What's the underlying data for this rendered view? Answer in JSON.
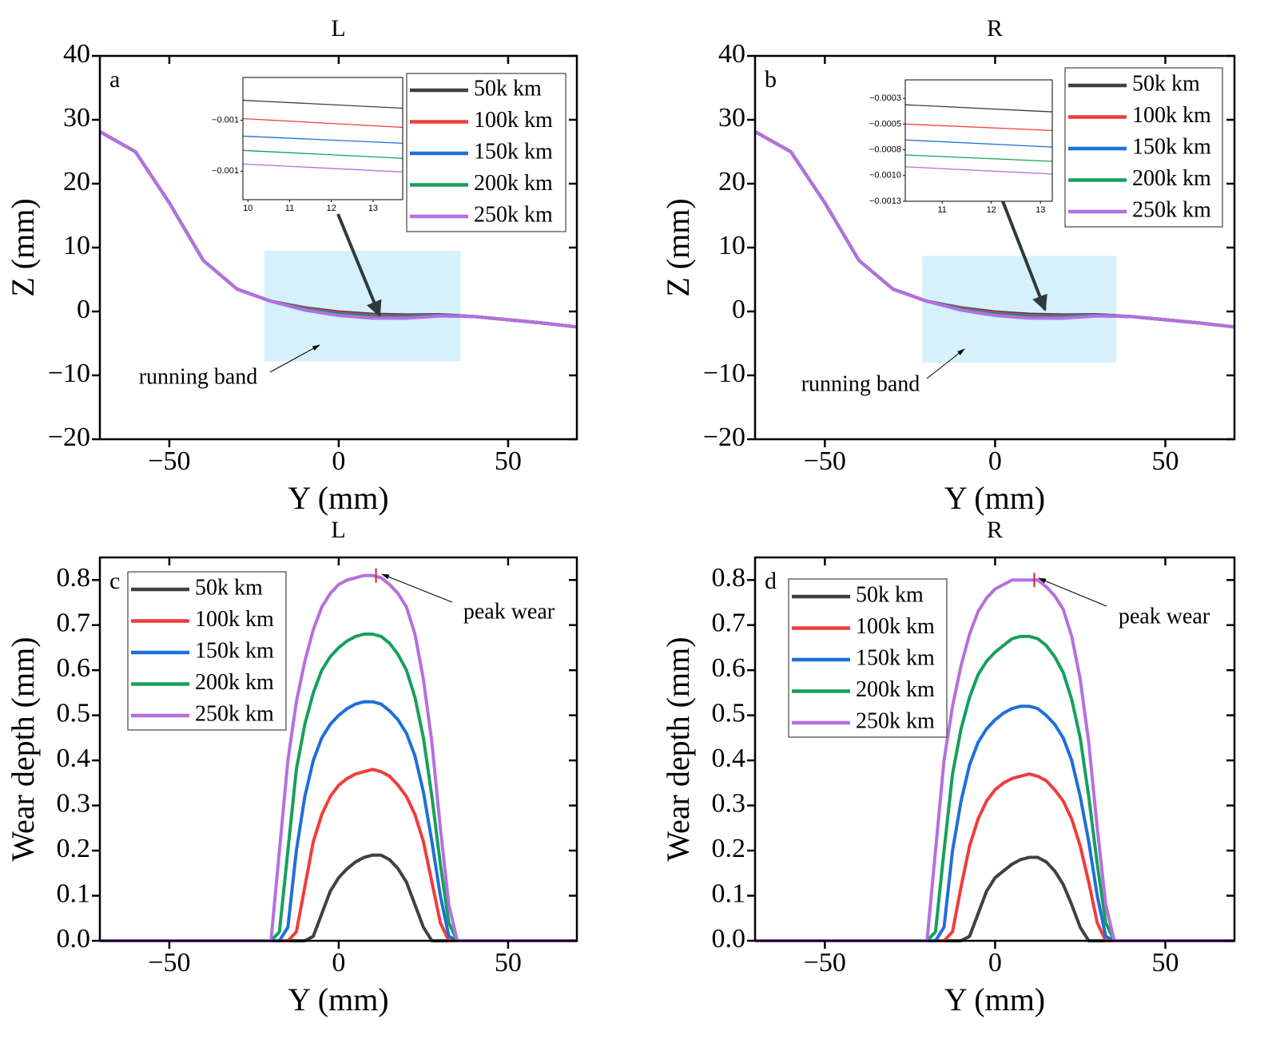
{
  "chart_data": [
    {
      "type": "line",
      "title": "L",
      "panel_label": "a",
      "xlabel": "Y (mm)",
      "ylabel": "Z (mm)",
      "x": [
        -70,
        -60,
        -50,
        -40,
        -30,
        -20,
        -10,
        0,
        10,
        20,
        30,
        40,
        50,
        60,
        70
      ],
      "series": [
        {
          "name": "50k km",
          "color": "#404040",
          "values": [
            28,
            25,
            17,
            8,
            3.5,
            1.6,
            0.58,
            -0.08,
            -0.44,
            -0.54,
            -0.5,
            -0.8,
            -1.3,
            -1.8,
            -2.4
          ]
        },
        {
          "name": "100k km",
          "color": "#f03c3c",
          "values": [
            28,
            25,
            17,
            8,
            3.5,
            1.6,
            0.5,
            -0.22,
            -0.63,
            -0.7,
            -0.55,
            -0.8,
            -1.3,
            -1.8,
            -2.4
          ]
        },
        {
          "name": "150k km",
          "color": "#1f6fd8",
          "values": [
            28,
            25,
            17,
            8,
            3.5,
            1.6,
            0.4,
            -0.37,
            -0.78,
            -0.83,
            -0.6,
            -0.8,
            -1.3,
            -1.8,
            -2.4
          ]
        },
        {
          "name": "200k km",
          "color": "#16a05a",
          "values": [
            28,
            25,
            17,
            8,
            3.5,
            1.6,
            0.3,
            -0.5,
            -0.93,
            -0.95,
            -0.65,
            -0.8,
            -1.3,
            -1.8,
            -2.4
          ]
        },
        {
          "name": "250k km",
          "color": "#b56fe0",
          "values": [
            28,
            25,
            17,
            8,
            3.5,
            1.6,
            0.2,
            -0.63,
            -1.05,
            -1.07,
            -0.7,
            -0.8,
            -1.3,
            -1.8,
            -2.4
          ]
        }
      ],
      "xlim": [
        -70.5,
        70.3
      ],
      "ylim": [
        -20,
        40
      ],
      "xticks": [
        {
          "value": -50,
          "label": "−50"
        },
        0,
        50
      ],
      "yticks": [
        {
          "value": -20,
          "label": "−20"
        },
        {
          "value": -10,
          "label": "−10"
        },
        0,
        10,
        20,
        30,
        40
      ],
      "band": {
        "label": "running band",
        "x": [
          -22,
          36
        ],
        "y": [
          -7.8,
          9.5
        ]
      },
      "inset": {
        "xlim": [
          9.88,
          13.71
        ],
        "ylim": [
          -0.00124,
          -0.00064
        ],
        "xticks": [
          10,
          11,
          12,
          13
        ],
        "yticks": [
          {
            "value": -0.00085,
            "label": "−0.001"
          },
          {
            "value": -0.0011,
            "label": "−0.001"
          }
        ],
        "x": [
          9.88,
          13.71
        ],
        "series": [
          {
            "values": [
              -0.000752,
              -0.000791
            ]
          },
          {
            "values": [
              -0.000842,
              -0.000885
            ]
          },
          {
            "values": [
              -0.000928,
              -0.000963
            ]
          },
          {
            "values": [
              -0.000998,
              -0.001037
            ]
          },
          {
            "values": [
              -0.001065,
              -0.001104
            ]
          }
        ]
      }
    },
    {
      "type": "line",
      "title": "R",
      "panel_label": "b",
      "xlabel": "Y (mm)",
      "ylabel": "Z (mm)",
      "x": [
        -70,
        -60,
        -50,
        -40,
        -30,
        -20,
        -10,
        0,
        10,
        20,
        30,
        40,
        50,
        60,
        70
      ],
      "series": [
        {
          "name": "50k km",
          "color": "#404040",
          "values": [
            28,
            25,
            17,
            8,
            3.5,
            1.6,
            0.58,
            -0.08,
            -0.44,
            -0.54,
            -0.5,
            -0.8,
            -1.3,
            -1.8,
            -2.4
          ]
        },
        {
          "name": "100k km",
          "color": "#f03c3c",
          "values": [
            28,
            25,
            17,
            8,
            3.5,
            1.6,
            0.5,
            -0.22,
            -0.63,
            -0.7,
            -0.55,
            -0.8,
            -1.3,
            -1.8,
            -2.4
          ]
        },
        {
          "name": "150k km",
          "color": "#1f6fd8",
          "values": [
            28,
            25,
            17,
            8,
            3.5,
            1.6,
            0.4,
            -0.37,
            -0.78,
            -0.83,
            -0.6,
            -0.8,
            -1.3,
            -1.8,
            -2.4
          ]
        },
        {
          "name": "200k km",
          "color": "#16a05a",
          "values": [
            28,
            25,
            17,
            8,
            3.5,
            1.6,
            0.3,
            -0.5,
            -0.93,
            -0.95,
            -0.65,
            -0.8,
            -1.3,
            -1.8,
            -2.4
          ]
        },
        {
          "name": "250k km",
          "color": "#b56fe0",
          "values": [
            28,
            25,
            17,
            8,
            3.5,
            1.6,
            0.2,
            -0.63,
            -1.05,
            -1.07,
            -0.7,
            -0.8,
            -1.3,
            -1.8,
            -2.4
          ]
        }
      ],
      "xlim": [
        -70.5,
        70.3
      ],
      "ylim": [
        -20,
        40
      ],
      "xticks": [
        {
          "value": -50,
          "label": "−50"
        },
        0,
        50
      ],
      "yticks": [
        {
          "value": -20,
          "label": "−20"
        },
        {
          "value": -10,
          "label": "−10"
        },
        0,
        10,
        20,
        30,
        40
      ],
      "band": {
        "label": "running band",
        "x": [
          -21.4,
          35.6
        ],
        "y": [
          -8,
          8.7
        ]
      },
      "inset": {
        "xlim": [
          10.25,
          13.24
        ],
        "ylim": [
          -0.00125,
          -7e-05
        ],
        "xticks": [
          11,
          12,
          13
        ],
        "yticks": [
          {
            "value": -0.00025,
            "label": "−0.0003"
          },
          {
            "value": -0.0005,
            "label": "−0.0005"
          },
          {
            "value": -0.00075,
            "label": "−0.0008"
          },
          {
            "value": -0.001,
            "label": "−0.0010"
          },
          {
            "value": -0.00125,
            "label": "−0.0013"
          }
        ],
        "x": [
          10.25,
          13.24
        ],
        "series": [
          {
            "values": [
              -0.000312,
              -0.000381
            ]
          },
          {
            "values": [
              -0.0005,
              -0.000562
            ]
          },
          {
            "values": [
              -0.000654,
              -0.000723
            ]
          },
          {
            "values": [
              -0.0008,
              -0.000862
            ]
          },
          {
            "values": [
              -0.000915,
              -0.000985
            ]
          }
        ]
      }
    },
    {
      "type": "line",
      "title": "L",
      "panel_label": "c",
      "xlabel": "Y (mm)",
      "ylabel": "Wear depth (mm)",
      "x": [
        -70,
        -20,
        -17.5,
        -15,
        -12.5,
        -10,
        -7.5,
        -5,
        -2.5,
        0,
        2.5,
        5,
        7.5,
        10,
        12.5,
        15,
        17.5,
        20,
        22.5,
        25,
        27.5,
        30,
        32.5,
        35,
        70
      ],
      "series": [
        {
          "name": "50k km",
          "color": "#404040",
          "values": [
            0,
            0,
            0,
            0,
            0,
            0,
            0.01,
            0.06,
            0.11,
            0.14,
            0.16,
            0.175,
            0.185,
            0.19,
            0.19,
            0.18,
            0.16,
            0.13,
            0.08,
            0.03,
            0,
            0,
            0,
            0,
            0
          ]
        },
        {
          "name": "100k km",
          "color": "#f03c3c",
          "values": [
            0,
            0,
            0,
            0,
            0.02,
            0.12,
            0.22,
            0.28,
            0.32,
            0.345,
            0.36,
            0.37,
            0.375,
            0.38,
            0.375,
            0.365,
            0.345,
            0.32,
            0.28,
            0.22,
            0.13,
            0.04,
            0,
            0,
            0
          ]
        },
        {
          "name": "150k km",
          "color": "#1f6fd8",
          "values": [
            0,
            0,
            0,
            0.03,
            0.2,
            0.32,
            0.4,
            0.45,
            0.48,
            0.5,
            0.515,
            0.525,
            0.53,
            0.53,
            0.525,
            0.51,
            0.49,
            0.46,
            0.41,
            0.33,
            0.22,
            0.1,
            0.01,
            0,
            0
          ]
        },
        {
          "name": "200k km",
          "color": "#16a05a",
          "values": [
            0,
            0,
            0.02,
            0.2,
            0.38,
            0.48,
            0.55,
            0.6,
            0.63,
            0.65,
            0.665,
            0.675,
            0.68,
            0.68,
            0.675,
            0.66,
            0.635,
            0.6,
            0.54,
            0.45,
            0.32,
            0.17,
            0.04,
            0,
            0
          ]
        },
        {
          "name": "250k km",
          "color": "#b56fe0",
          "values": [
            0,
            0,
            0.2,
            0.4,
            0.53,
            0.62,
            0.69,
            0.74,
            0.77,
            0.79,
            0.8,
            0.805,
            0.81,
            0.81,
            0.805,
            0.79,
            0.77,
            0.74,
            0.68,
            0.58,
            0.44,
            0.25,
            0.08,
            0,
            0
          ]
        }
      ],
      "xlim": [
        -70.5,
        70.3
      ],
      "ylim": [
        0,
        0.85
      ],
      "xticks": [
        {
          "value": -50,
          "label": "−50"
        },
        0,
        50
      ],
      "yticks": [
        {
          "value": 0,
          "label": "0.0"
        },
        0.1,
        0.2,
        0.3,
        0.4,
        0.5,
        0.6,
        0.7,
        0.8
      ],
      "peak": {
        "label": "peak wear",
        "x": 11,
        "y": 0.81
      }
    },
    {
      "type": "line",
      "title": "R",
      "panel_label": "d",
      "xlabel": "Y (mm)",
      "ylabel": "Wear depth (mm)",
      "x": [
        -70,
        -20,
        -17.5,
        -15,
        -12.5,
        -10,
        -7.5,
        -5,
        -2.5,
        0,
        2.5,
        5,
        7.5,
        10,
        12.5,
        15,
        17.5,
        20,
        22.5,
        25,
        27.5,
        30,
        32.5,
        35,
        70
      ],
      "series": [
        {
          "name": "50k km",
          "color": "#404040",
          "values": [
            0,
            0,
            0,
            0,
            0,
            0,
            0.01,
            0.06,
            0.11,
            0.14,
            0.155,
            0.17,
            0.18,
            0.185,
            0.185,
            0.175,
            0.155,
            0.125,
            0.08,
            0.03,
            0,
            0,
            0,
            0,
            0
          ]
        },
        {
          "name": "100k km",
          "color": "#f03c3c",
          "values": [
            0,
            0,
            0,
            0,
            0.02,
            0.12,
            0.21,
            0.27,
            0.31,
            0.335,
            0.35,
            0.36,
            0.365,
            0.37,
            0.365,
            0.355,
            0.335,
            0.31,
            0.27,
            0.21,
            0.13,
            0.04,
            0,
            0,
            0
          ]
        },
        {
          "name": "150k km",
          "color": "#1f6fd8",
          "values": [
            0,
            0,
            0,
            0.03,
            0.2,
            0.31,
            0.39,
            0.44,
            0.47,
            0.49,
            0.505,
            0.515,
            0.52,
            0.52,
            0.515,
            0.5,
            0.48,
            0.45,
            0.4,
            0.32,
            0.22,
            0.1,
            0.01,
            0,
            0
          ]
        },
        {
          "name": "200k km",
          "color": "#16a05a",
          "values": [
            0,
            0,
            0.02,
            0.2,
            0.37,
            0.47,
            0.54,
            0.59,
            0.62,
            0.64,
            0.655,
            0.67,
            0.675,
            0.675,
            0.67,
            0.655,
            0.63,
            0.595,
            0.535,
            0.45,
            0.32,
            0.17,
            0.04,
            0,
            0
          ]
        },
        {
          "name": "250k km",
          "color": "#b56fe0",
          "values": [
            0,
            0,
            0.2,
            0.4,
            0.52,
            0.61,
            0.68,
            0.73,
            0.76,
            0.78,
            0.79,
            0.8,
            0.8,
            0.8,
            0.8,
            0.785,
            0.765,
            0.735,
            0.675,
            0.58,
            0.44,
            0.25,
            0.08,
            0,
            0
          ]
        }
      ],
      "xlim": [
        -70.5,
        70.3
      ],
      "ylim": [
        0,
        0.85
      ],
      "xticks": [
        {
          "value": -50,
          "label": "−50"
        },
        0,
        50
      ],
      "yticks": [
        {
          "value": 0,
          "label": "0.0"
        },
        0.1,
        0.2,
        0.3,
        0.4,
        0.5,
        0.6,
        0.7,
        0.8
      ],
      "peak": {
        "label": "peak wear",
        "x": 11.5,
        "y": 0.8
      }
    }
  ]
}
